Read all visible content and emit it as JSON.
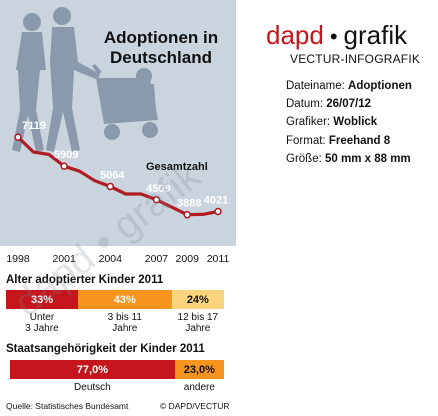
{
  "title": "Adoptionen in Deutschland",
  "title_lines": [
    "Adoptionen in",
    "Deutschland"
  ],
  "watermark": "dapd • grafik",
  "colors": {
    "panel_bg": "#c9d4df",
    "line": "#b01c22",
    "red": "#c4161c",
    "orange": "#f7941d",
    "yellow": "#fbd57e",
    "brand_red": "#c4161c"
  },
  "chart_data": [
    {
      "type": "line",
      "series_label": "Gesamtzahl",
      "x": [
        1998,
        2001,
        2004,
        2007,
        2009,
        2011
      ],
      "y": [
        7119,
        5909,
        5064,
        4509,
        3888,
        4021
      ],
      "x_tick_labels": [
        "1998",
        "2001",
        "2004",
        "2007",
        "2009",
        "2011"
      ],
      "data_labels": [
        "7119",
        "5909",
        "5064",
        "4509",
        "3888",
        "4021"
      ],
      "ylim": [
        3000,
        7500
      ],
      "grid": false,
      "line_shape": [
        [
          1998,
          7119
        ],
        [
          1999,
          6500
        ],
        [
          2000,
          6400
        ],
        [
          2001,
          5909
        ],
        [
          2002,
          5700
        ],
        [
          2003,
          5300
        ],
        [
          2004,
          5064
        ],
        [
          2005,
          4750
        ],
        [
          2006,
          4750
        ],
        [
          2007,
          4509
        ],
        [
          2008,
          4200
        ],
        [
          2009,
          3888
        ],
        [
          2010,
          3900
        ],
        [
          2011,
          4021
        ]
      ]
    },
    {
      "type": "bar",
      "title": "Alter adoptierter Kinder 2011",
      "categories": [
        "Unter 3 Jahre",
        "3 bis 11 Jahre",
        "12 bis 17 Jahre"
      ],
      "category_lines": [
        [
          "Unter",
          "3 Jahre"
        ],
        [
          "3 bis 11",
          "Jahre"
        ],
        [
          "12 bis 17",
          "Jahre"
        ]
      ],
      "values": [
        33,
        43,
        24
      ],
      "value_labels": [
        "33%",
        "43%",
        "24%"
      ],
      "colors": [
        "#c4161c",
        "#f7941d",
        "#fbd57e"
      ],
      "stacked": true
    },
    {
      "type": "bar",
      "title": "Staatsangehörigkeit der Kinder 2011",
      "categories": [
        "Deutsch",
        "andere"
      ],
      "values": [
        77.0,
        23.0
      ],
      "value_labels": [
        "77,0%",
        "23,0%"
      ],
      "colors": [
        "#c4161c",
        "#f7941d"
      ],
      "stacked": true
    }
  ],
  "source": "Quelle: Statistisches Bundesamt",
  "copyright": "© DAPD/VECTUR",
  "info": {
    "brand_left": "dapd",
    "brand_sep": "•",
    "brand_right": "grafik",
    "subtitle": "VECTUR-INFOGRAFIK",
    "meta": [
      {
        "key": "Dateiname:",
        "value": "Adoptionen"
      },
      {
        "key": "Datum:",
        "value": "26/07/12"
      },
      {
        "key": "Grafiker:",
        "value": "Woblick"
      },
      {
        "key": "Format:",
        "value": "Freehand 8"
      },
      {
        "key": "Größe:",
        "value": "50 mm x 88 mm"
      }
    ]
  }
}
